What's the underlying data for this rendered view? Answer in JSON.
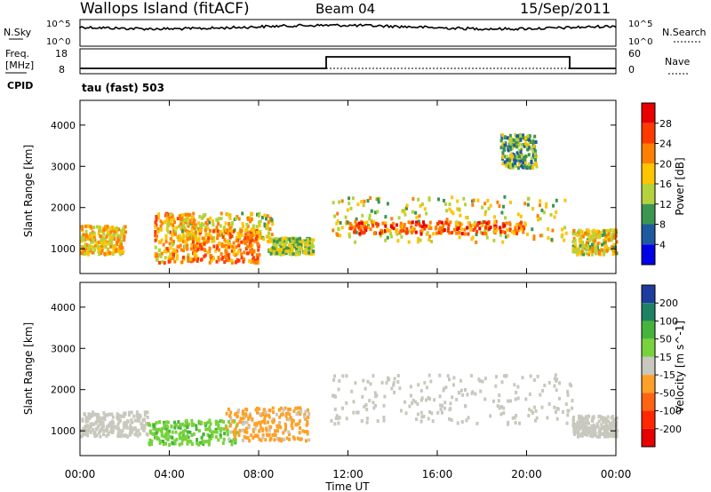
{
  "header": {
    "station": "Wallops Island (fitACF)",
    "beam": "Beam 04",
    "date": "15/Sep/2011"
  },
  "strip_nsky": {
    "left_label": "N.Sky",
    "left_ticks": [
      "10^5",
      "10^0"
    ],
    "right_ticks": [
      "10^5",
      "10^0"
    ],
    "right_label": "N.Search"
  },
  "strip_freq": {
    "left_label_line1": "Freq.",
    "left_label_line2": "[MHz]",
    "left_ticks": [
      "18",
      "8"
    ],
    "right_ticks": [
      "60",
      "0"
    ],
    "right_label": "Nave",
    "cpid_label": "CPID",
    "cpid_value": "tau (fast) 503"
  },
  "chart_data": [
    {
      "type": "heatmap",
      "name": "power",
      "ylabel": "Slant Range [km]",
      "y_ticks": [
        "4000",
        "3000",
        "2000",
        "1000"
      ],
      "ylim": [
        400,
        4600
      ],
      "colorbar_label": "Power [dB]",
      "colorbar_ticks": [
        "28",
        "24",
        "20",
        "16",
        "12",
        "8",
        "4"
      ],
      "colorbar_colors": [
        "#e80000",
        "#ff3a00",
        "#ff8000",
        "#ffc400",
        "#b4d23c",
        "#3c9650",
        "#1e5aa0",
        "#0000e6"
      ],
      "echo_bands": [
        {
          "t": [
            0,
            2
          ],
          "r": [
            900,
            1600
          ],
          "v": 16
        },
        {
          "t": [
            3.3,
            5.2
          ],
          "r": [
            700,
            1900
          ],
          "v": 18
        },
        {
          "t": [
            4.4,
            8.6
          ],
          "r": [
            1200,
            1900
          ],
          "v": 15
        },
        {
          "t": [
            5,
            8
          ],
          "r": [
            700,
            1500
          ],
          "v": 20
        },
        {
          "t": [
            8.4,
            10.4
          ],
          "r": [
            900,
            1300
          ],
          "v": 12
        },
        {
          "t": [
            11.2,
            21.8
          ],
          "r": [
            1200,
            2300
          ],
          "v": 14
        },
        {
          "t": [
            12,
            20
          ],
          "r": [
            1400,
            1700
          ],
          "v": 22
        },
        {
          "t": [
            18.8,
            20.4
          ],
          "r": [
            3000,
            3800
          ],
          "v": 10
        },
        {
          "t": [
            22,
            24
          ],
          "r": [
            900,
            1500
          ],
          "v": 14
        }
      ]
    },
    {
      "type": "heatmap",
      "name": "velocity",
      "ylabel": "Slant Range [km]",
      "y_ticks": [
        "4000",
        "3000",
        "2000",
        "1000"
      ],
      "ylim": [
        400,
        4600
      ],
      "colorbar_label": "Velocity [m s^-1]",
      "colorbar_ticks": [
        "200",
        "100",
        "50",
        "15",
        "-15",
        "-50",
        "-100",
        "-200"
      ],
      "colorbar_colors": [
        "#1e3ca0",
        "#1e8264",
        "#46b43c",
        "#78d23c",
        "#c8c8be",
        "#ffa028",
        "#ff6414",
        "#ff2800",
        "#e60000"
      ],
      "echo_bands": [
        {
          "t": [
            0,
            3
          ],
          "r": [
            900,
            1500
          ],
          "v": 0
        },
        {
          "t": [
            3,
            7
          ],
          "r": [
            700,
            1300
          ],
          "v": 40
        },
        {
          "t": [
            6.5,
            10.2
          ],
          "r": [
            800,
            1600
          ],
          "v": -40
        },
        {
          "t": [
            11.2,
            22
          ],
          "r": [
            1200,
            2400
          ],
          "v": 0
        },
        {
          "t": [
            22,
            24
          ],
          "r": [
            900,
            1400
          ],
          "v": 0
        }
      ]
    }
  ],
  "x_axis": {
    "ticks": [
      "00:00",
      "04:00",
      "08:00",
      "12:00",
      "16:00",
      "20:00",
      "00:00"
    ],
    "label": "Time UT",
    "range_hours": [
      0,
      24
    ]
  }
}
